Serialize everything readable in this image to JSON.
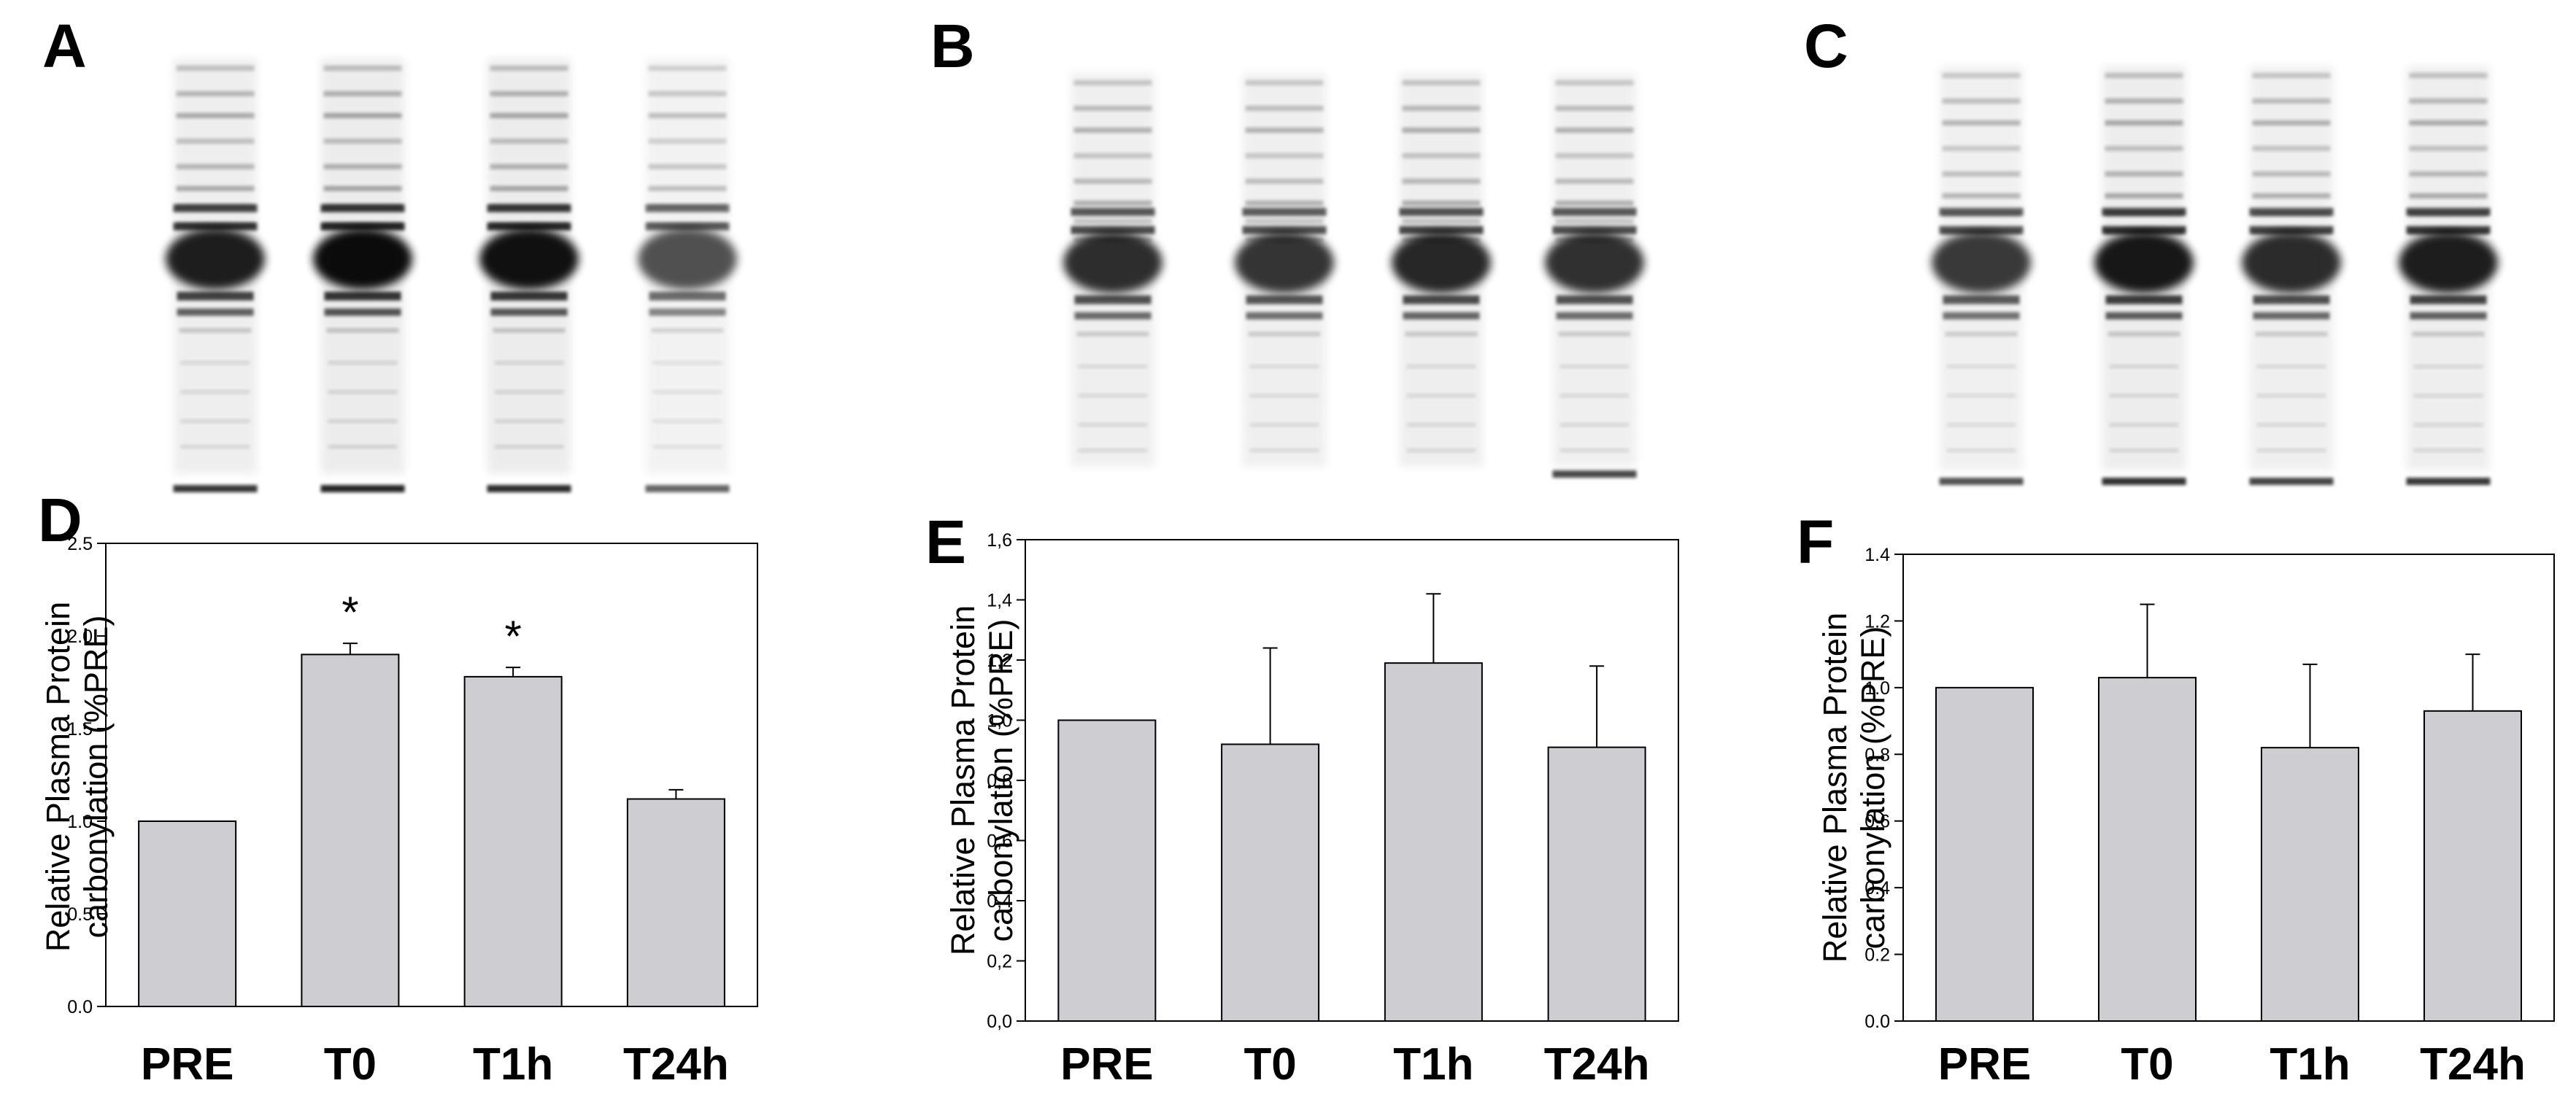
{
  "panel_letters": [
    "A",
    "B",
    "C",
    "D",
    "E",
    "F"
  ],
  "blots": [
    {
      "panel": "A",
      "lanes": [
        {
          "intensity": 0.92,
          "bottom_band": true
        },
        {
          "intensity": 1.0,
          "bottom_band": true
        },
        {
          "intensity": 0.98,
          "bottom_band": true
        },
        {
          "intensity": 0.7,
          "bottom_band": true
        }
      ]
    },
    {
      "panel": "B",
      "lanes": [
        {
          "intensity": 0.85,
          "bottom_band": false
        },
        {
          "intensity": 0.82,
          "bottom_band": false
        },
        {
          "intensity": 0.88,
          "bottom_band": false
        },
        {
          "intensity": 0.84,
          "bottom_band": true
        }
      ]
    },
    {
      "panel": "C",
      "lanes": [
        {
          "intensity": 0.8,
          "bottom_band": true
        },
        {
          "intensity": 0.95,
          "bottom_band": true
        },
        {
          "intensity": 0.86,
          "bottom_band": true
        },
        {
          "intensity": 0.92,
          "bottom_band": true
        }
      ]
    }
  ],
  "chart_data": [
    {
      "panel": "D",
      "type": "bar",
      "categories": [
        "PRE",
        "T0",
        "T1h",
        "T24h"
      ],
      "values": [
        1.0,
        1.9,
        1.78,
        1.12
      ],
      "errors": [
        0,
        0.06,
        0.05,
        0.05
      ],
      "significance": [
        "",
        "*",
        "*",
        ""
      ],
      "ylabel_lines": [
        "Relative Plasma Protein",
        "carbonylation (%PRE)"
      ],
      "ylim": [
        0,
        2.5
      ],
      "yticks": [
        "0.0",
        "0.5",
        "1.0",
        "1.5",
        "2.0",
        "2.5"
      ],
      "bar_color": "#cdcdd2",
      "grid": false
    },
    {
      "panel": "E",
      "type": "bar",
      "categories": [
        "PRE",
        "T0",
        "T1h",
        "T24h"
      ],
      "values": [
        1.0,
        0.92,
        1.19,
        0.91
      ],
      "errors": [
        0,
        0.32,
        0.23,
        0.27
      ],
      "significance": [
        "",
        "",
        "",
        ""
      ],
      "ylabel_lines": [
        "Relative Plasma Protein",
        "carbonylation (%PRE)"
      ],
      "ylim": [
        0,
        1.6
      ],
      "yticks": [
        "0,0",
        "0,2",
        "0,4",
        "0,6",
        "0,8",
        "1,0",
        "1,2",
        "1,4",
        "1,6"
      ],
      "bar_color": "#cdcdd2",
      "grid": false
    },
    {
      "panel": "F",
      "type": "bar",
      "categories": [
        "PRE",
        "T0",
        "T1h",
        "T24h"
      ],
      "values": [
        1.0,
        1.03,
        0.82,
        0.93
      ],
      "errors": [
        0,
        0.22,
        0.25,
        0.17
      ],
      "significance": [
        "",
        "",
        "",
        ""
      ],
      "ylabel_lines": [
        "Relative Plasma Protein",
        "carbonylation (%PRE)"
      ],
      "ylim": [
        0,
        1.4
      ],
      "yticks": [
        "0.0",
        "0.2",
        "0.4",
        "0.6",
        "0.8",
        "1.0",
        "1.2",
        "1.4"
      ],
      "bar_color": "#cdcdd2",
      "grid": false
    }
  ]
}
